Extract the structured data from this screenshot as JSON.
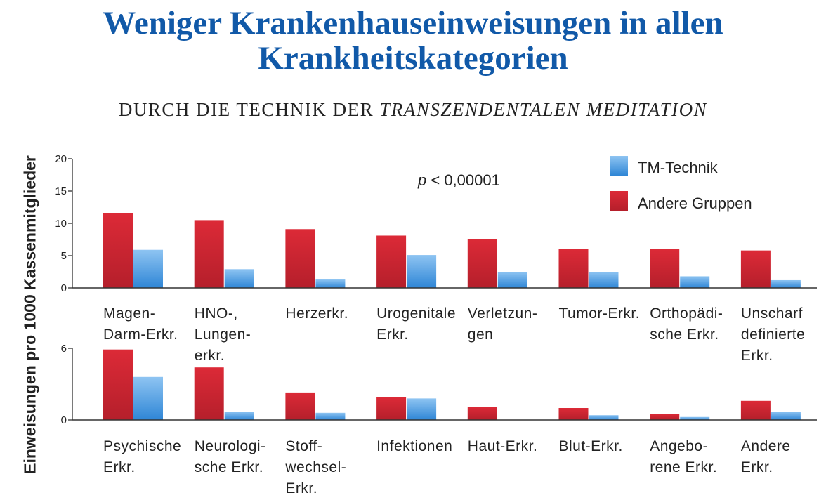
{
  "title_line1": "Weniger Krankenhauseinweisungen in allen",
  "title_line2": "Krankheitskategorien",
  "subtitle_prefix": "DURCH DIE TECHNIK DER",
  "subtitle_italic": "TRANSZENDENTALEN MEDITATION",
  "ylabel": "Einweisungen pro 1000 Kassenmitglieder",
  "annotation": {
    "p": "p",
    "rest": "< 0,00001"
  },
  "colors": {
    "tm": "#5aa3e6",
    "other": "#d42a35",
    "title": "#1159a8"
  },
  "chart_data": [
    {
      "type": "bar",
      "ylim": [
        0,
        20
      ],
      "yticks": [
        "0",
        "5",
        "10",
        "15",
        "20"
      ],
      "legend": "top-right",
      "categories": [
        [
          "Magen-",
          "Darm-Erkr."
        ],
        [
          "HNO-,",
          "Lungen-",
          "erkr."
        ],
        [
          "Herzerkr."
        ],
        [
          "Urogenitale",
          "Erkr."
        ],
        [
          "Verletzun-",
          "gen"
        ],
        [
          "Tumor-Erkr."
        ],
        [
          "Orthopädi-",
          "sche Erkr."
        ],
        [
          "Unscharf",
          "definierte",
          "Erkr."
        ]
      ],
      "series": [
        {
          "name": "Andere Gruppen",
          "values": [
            11.6,
            10.5,
            9.1,
            8.1,
            7.6,
            6.0,
            6.0,
            5.8
          ]
        },
        {
          "name": "TM-Technik",
          "values": [
            5.9,
            2.9,
            1.3,
            5.1,
            2.5,
            2.5,
            1.8,
            1.2
          ]
        }
      ]
    },
    {
      "type": "bar",
      "ylim": [
        0,
        6
      ],
      "yticks": [
        "0",
        "6"
      ],
      "categories": [
        [
          "Psychische",
          "Erkr."
        ],
        [
          "Neurologi-",
          "sche Erkr."
        ],
        [
          "Stoff-",
          "wechsel-",
          "Erkr."
        ],
        [
          "Infektionen"
        ],
        [
          "Haut-Erkr."
        ],
        [
          "Blut-Erkr."
        ],
        [
          "Angebo-",
          "rene Erkr."
        ],
        [
          "Andere",
          "Erkr."
        ]
      ],
      "series": [
        {
          "name": "Andere Gruppen",
          "values": [
            5.9,
            4.4,
            2.3,
            1.9,
            1.1,
            1.0,
            0.5,
            1.6
          ]
        },
        {
          "name": "TM-Technik",
          "values": [
            3.6,
            0.7,
            0.6,
            1.8,
            0.0,
            0.4,
            0.25,
            0.7
          ]
        }
      ]
    }
  ]
}
